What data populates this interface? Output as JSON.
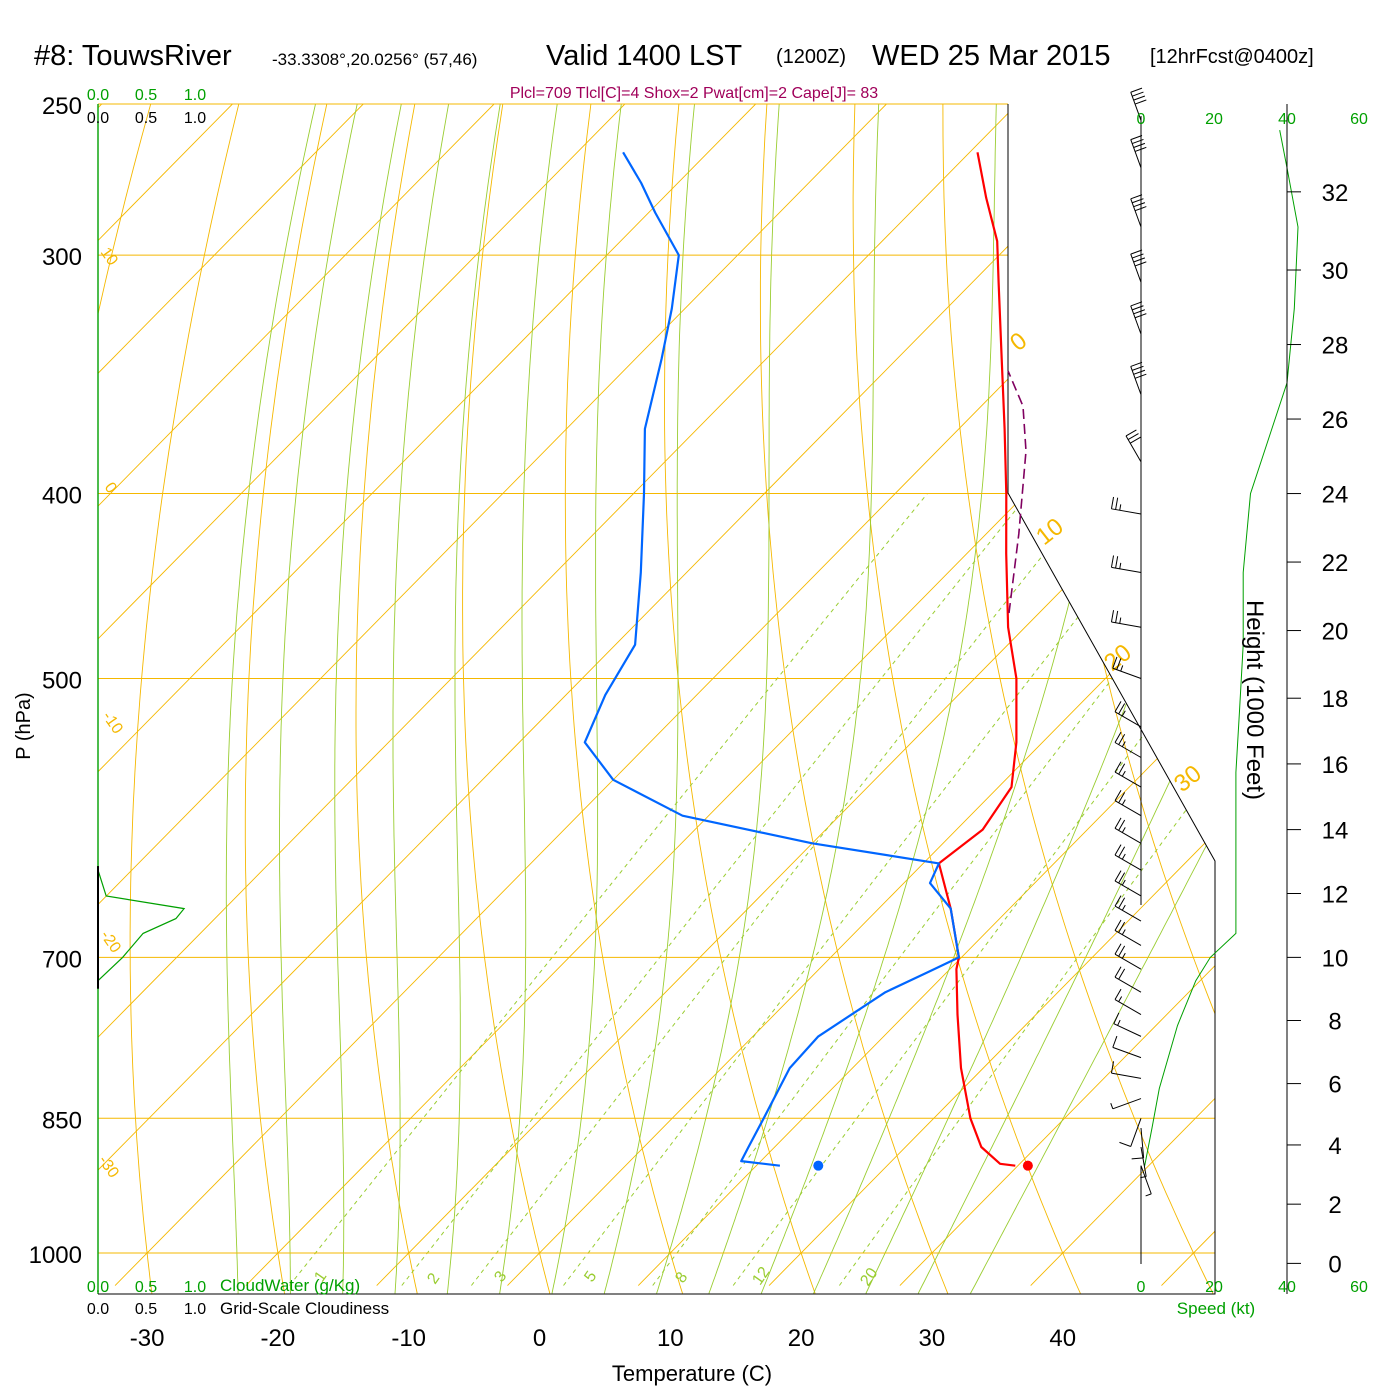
{
  "header": {
    "station": "#8: TouwsRiver",
    "coords": "-33.3308°,20.0256° (57,46)",
    "valid": "Valid 1400 LST",
    "zulu": "(1200Z)",
    "date": "WED 25 Mar 2015",
    "forecast": "[12hrFcst@0400z]"
  },
  "params": "Plcl=709 Tlcl[C]=4 Shox=2 Pwat[cm]=2 Cape[J]= 83",
  "colors": {
    "temperature": "#ff0000",
    "dewpoint": "#0066ff",
    "parcel": "#800060",
    "isobar": "#f5b800",
    "dry_adiabat": "#f5b800",
    "moist_adiabat": "#9acd32",
    "mixing_ratio": "#9acd32",
    "cloud_water": "#00a000",
    "height": "#00a000",
    "params_text": "#a0005a"
  },
  "chart_data": {
    "type": "line",
    "title": "#8: TouwsRiver",
    "xlabel": "Temperature (C)",
    "ylabel": "P (hPa)",
    "y2label": "Height (1000 Feet)",
    "y_scale": "log",
    "xlim": [
      -34,
      51
    ],
    "ylim": [
      1040,
      250
    ],
    "x_ticks": [
      -30,
      -20,
      -10,
      0,
      10,
      20,
      30,
      40
    ],
    "p_ticks": [
      250,
      300,
      400,
      500,
      700,
      850,
      1000
    ],
    "height_ticks": [
      0,
      2,
      4,
      6,
      8,
      10,
      12,
      14,
      16,
      18,
      20,
      22,
      24,
      26,
      28,
      30,
      32
    ],
    "height_profile": [
      {
        "p": 900,
        "h": 3.3
      },
      {
        "p": 850,
        "h": 4.9
      },
      {
        "p": 700,
        "h": 10.0
      },
      {
        "p": 600,
        "h": 14.0
      },
      {
        "p": 500,
        "h": 18.6
      },
      {
        "p": 400,
        "h": 24.0
      },
      {
        "p": 300,
        "h": 30.4
      },
      {
        "p": 265,
        "h": 33.0
      }
    ],
    "series": [
      {
        "name": "Temperature",
        "points": [
          {
            "p": 900,
            "t": 29.8
          },
          {
            "p": 898,
            "t": 28.5
          },
          {
            "p": 880,
            "t": 25.8
          },
          {
            "p": 850,
            "t": 22.8
          },
          {
            "p": 800,
            "t": 18.3
          },
          {
            "p": 750,
            "t": 14.0
          },
          {
            "p": 710,
            "t": 10.5
          },
          {
            "p": 700,
            "t": 9.8
          },
          {
            "p": 660,
            "t": 5.5
          },
          {
            "p": 625,
            "t": 1.2
          },
          {
            "p": 600,
            "t": 2.0
          },
          {
            "p": 570,
            "t": 1.0
          },
          {
            "p": 540,
            "t": -2.0
          },
          {
            "p": 500,
            "t": -6.8
          },
          {
            "p": 470,
            "t": -11.3
          },
          {
            "p": 430,
            "t": -17.0
          },
          {
            "p": 400,
            "t": -21.5
          },
          {
            "p": 370,
            "t": -26.5
          },
          {
            "p": 340,
            "t": -32.0
          },
          {
            "p": 310,
            "t": -38.0
          },
          {
            "p": 295,
            "t": -41.2
          },
          {
            "p": 280,
            "t": -45.3
          },
          {
            "p": 265,
            "t": -49.4
          }
        ]
      },
      {
        "name": "Dewpoint",
        "points": [
          {
            "p": 900,
            "t": 11.8
          },
          {
            "p": 895,
            "t": 8.5
          },
          {
            "p": 880,
            "t": 8.0
          },
          {
            "p": 850,
            "t": 7.0
          },
          {
            "p": 800,
            "t": 5.2
          },
          {
            "p": 770,
            "t": 5.0
          },
          {
            "p": 730,
            "t": 6.8
          },
          {
            "p": 712,
            "t": 8.6
          },
          {
            "p": 700,
            "t": 9.8
          },
          {
            "p": 660,
            "t": 5.5
          },
          {
            "p": 640,
            "t": 2.0
          },
          {
            "p": 625,
            "t": 1.2
          },
          {
            "p": 610,
            "t": -10.0
          },
          {
            "p": 590,
            "t": -22.0
          },
          {
            "p": 565,
            "t": -30.0
          },
          {
            "p": 540,
            "t": -35.0
          },
          {
            "p": 510,
            "t": -37.0
          },
          {
            "p": 480,
            "t": -38.5
          },
          {
            "p": 440,
            "t": -43.5
          },
          {
            "p": 400,
            "t": -49.2
          },
          {
            "p": 370,
            "t": -54.0
          },
          {
            "p": 340,
            "t": -58.0
          },
          {
            "p": 320,
            "t": -61.0
          },
          {
            "p": 300,
            "t": -64.5
          },
          {
            "p": 285,
            "t": -69.5
          },
          {
            "p": 275,
            "t": -72.8
          },
          {
            "p": 265,
            "t": -76.5
          }
        ]
      },
      {
        "name": "Parcel",
        "points": [
          {
            "p": 462,
            "t": -12.3
          },
          {
            "p": 420,
            "t": -17.5
          },
          {
            "p": 380,
            "t": -23.2
          },
          {
            "p": 360,
            "t": -26.8
          },
          {
            "p": 345,
            "t": -30.6
          }
        ]
      }
    ],
    "surface_temperature": 30.8,
    "surface_dewpoint": 14.7,
    "surface_pressure": 900,
    "cloud_axis_labels": [
      "0.0",
      "0.5",
      "1.0"
    ],
    "cloud_water_label": "CloudWater (g/Kg)",
    "cloudiness_label": "Grid-Scale Cloudiness",
    "cloud_water_profile": [
      {
        "p": 630,
        "v": 0.0
      },
      {
        "p": 650,
        "v": 0.1
      },
      {
        "p": 660,
        "v": 1.05
      },
      {
        "p": 668,
        "v": 0.95
      },
      {
        "p": 680,
        "v": 0.55
      },
      {
        "p": 700,
        "v": 0.3
      },
      {
        "p": 720,
        "v": 0.0
      }
    ],
    "dry_adiabat_labels": [
      10,
      0,
      -10,
      -20,
      -30,
      0,
      10,
      20,
      30
    ],
    "mixing_ratio_labels": [
      "1",
      "2",
      "3",
      "5",
      "8",
      "12",
      "20"
    ],
    "wind_speed_label": "Speed (kt)",
    "wind_speed_ticks": [
      0,
      20,
      40,
      60
    ],
    "wind_speed_profile": [
      {
        "p": 900,
        "s": 1
      },
      {
        "p": 860,
        "s": 3
      },
      {
        "p": 820,
        "s": 5
      },
      {
        "p": 760,
        "s": 10
      },
      {
        "p": 720,
        "s": 15
      },
      {
        "p": 700,
        "s": 19
      },
      {
        "p": 680,
        "s": 26
      },
      {
        "p": 620,
        "s": 26
      },
      {
        "p": 560,
        "s": 26
      },
      {
        "p": 520,
        "s": 27
      },
      {
        "p": 480,
        "s": 28
      },
      {
        "p": 440,
        "s": 28
      },
      {
        "p": 400,
        "s": 30
      },
      {
        "p": 350,
        "s": 40
      },
      {
        "p": 320,
        "s": 42
      },
      {
        "p": 290,
        "s": 43
      },
      {
        "p": 270,
        "s": 40
      },
      {
        "p": 258,
        "s": 38
      }
    ],
    "wind_barbs": [
      {
        "p": 900,
        "d": 160,
        "s": 5
      },
      {
        "p": 880,
        "d": 170,
        "s": 7
      },
      {
        "p": 860,
        "d": 175,
        "s": 10
      },
      {
        "p": 850,
        "d": 200,
        "s": 10
      },
      {
        "p": 830,
        "d": 250,
        "s": 8
      },
      {
        "p": 810,
        "d": 280,
        "s": 10
      },
      {
        "p": 790,
        "d": 290,
        "s": 12
      },
      {
        "p": 770,
        "d": 295,
        "s": 15
      },
      {
        "p": 750,
        "d": 300,
        "s": 18
      },
      {
        "p": 730,
        "d": 300,
        "s": 20
      },
      {
        "p": 710,
        "d": 300,
        "s": 25
      },
      {
        "p": 690,
        "d": 300,
        "s": 25
      },
      {
        "p": 670,
        "d": 300,
        "s": 25
      },
      {
        "p": 650,
        "d": 300,
        "s": 25
      },
      {
        "p": 630,
        "d": 300,
        "s": 25
      },
      {
        "p": 610,
        "d": 300,
        "s": 25
      },
      {
        "p": 590,
        "d": 300,
        "s": 25
      },
      {
        "p": 570,
        "d": 300,
        "s": 25
      },
      {
        "p": 550,
        "d": 300,
        "s": 25
      },
      {
        "p": 530,
        "d": 300,
        "s": 25
      },
      {
        "p": 500,
        "d": 290,
        "s": 25
      },
      {
        "p": 470,
        "d": 280,
        "s": 25
      },
      {
        "p": 440,
        "d": 280,
        "s": 25
      },
      {
        "p": 410,
        "d": 280,
        "s": 25
      },
      {
        "p": 385,
        "d": 330,
        "s": 30
      },
      {
        "p": 355,
        "d": 340,
        "s": 40
      },
      {
        "p": 330,
        "d": 340,
        "s": 40
      },
      {
        "p": 310,
        "d": 340,
        "s": 40
      },
      {
        "p": 290,
        "d": 340,
        "s": 40
      },
      {
        "p": 270,
        "d": 340,
        "s": 40
      },
      {
        "p": 255,
        "d": 340,
        "s": 40
      }
    ]
  }
}
